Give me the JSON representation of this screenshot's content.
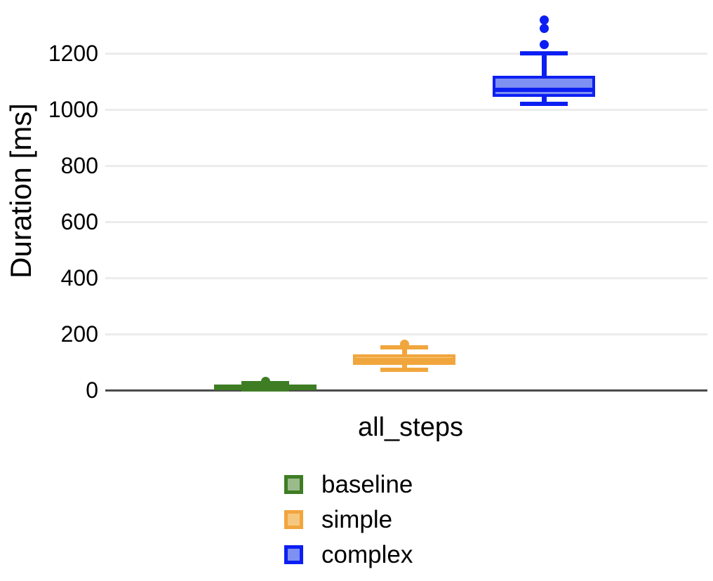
{
  "chart_data": {
    "type": "boxplot",
    "title": "",
    "xlabel": "all_steps",
    "ylabel": "Duration [ms]",
    "ylim": [
      0,
      1390
    ],
    "yticks": [
      0,
      200,
      400,
      600,
      800,
      1000,
      1200
    ],
    "grid": "horizontal",
    "categories": [
      "all_steps"
    ],
    "legend_position": "bottom-left",
    "series": [
      {
        "name": "baseline",
        "color": "#3e7d24",
        "fill": "#9cbb8c",
        "stats": {
          "whisker_low": 2,
          "q1": 4,
          "median": 13,
          "q3": 20,
          "whisker_high": 26,
          "outliers": [
            31
          ]
        }
      },
      {
        "name": "simple",
        "color": "#f1a63d",
        "fill": "#f6c87f",
        "stats": {
          "whisker_low": 72,
          "q1": 90,
          "median": 107,
          "q3": 128,
          "whisker_high": 152,
          "outliers": [
            163
          ]
        }
      },
      {
        "name": "complex",
        "color": "#0c1ff2",
        "fill": "#7e90f1",
        "stats": {
          "whisker_low": 1020,
          "q1": 1045,
          "median": 1070,
          "q3": 1120,
          "whisker_high": 1200,
          "outliers": [
            1232,
            1290,
            1318
          ]
        }
      }
    ]
  },
  "axis": {
    "ylabel": "Duration [ms]",
    "xlabel": "all_steps"
  },
  "legend": {
    "items": [
      {
        "label": "baseline"
      },
      {
        "label": "simple"
      },
      {
        "label": "complex"
      }
    ]
  }
}
